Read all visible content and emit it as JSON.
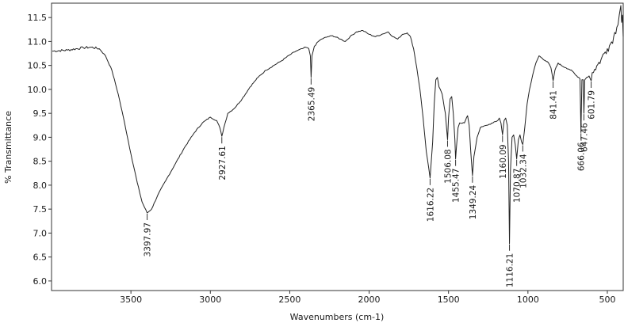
{
  "chart_data": {
    "type": "line",
    "title": "",
    "xlabel": "Wavenumbers (cm-1)",
    "ylabel": "% Transmittance",
    "x_reversed": true,
    "xlim": [
      4000,
      400
    ],
    "ylim": [
      5.8,
      11.8
    ],
    "grid": false,
    "line_color": "#222222",
    "x_ticks": [
      {
        "value": 3500,
        "label": "3500"
      },
      {
        "value": 3000,
        "label": "3000"
      },
      {
        "value": 2500,
        "label": "2500"
      },
      {
        "value": 2000,
        "label": "2000"
      },
      {
        "value": 1500,
        "label": "1500"
      },
      {
        "value": 1000,
        "label": "1000"
      },
      {
        "value": 500,
        "label": "500"
      }
    ],
    "y_ticks": [
      {
        "value": 6.0,
        "label": "6.0"
      },
      {
        "value": 6.5,
        "label": "6.5"
      },
      {
        "value": 7.0,
        "label": "7.0"
      },
      {
        "value": 7.5,
        "label": "7.5"
      },
      {
        "value": 8.0,
        "label": "8.0"
      },
      {
        "value": 8.5,
        "label": "8.5"
      },
      {
        "value": 9.0,
        "label": "9.0"
      },
      {
        "value": 9.5,
        "label": "9.5"
      },
      {
        "value": 10.0,
        "label": "10.0"
      },
      {
        "value": 10.5,
        "label": "10.5"
      },
      {
        "value": 11.0,
        "label": "11.0"
      },
      {
        "value": 11.5,
        "label": "11.5"
      }
    ],
    "series": [
      {
        "points": [
          [
            3995,
            10.8
          ],
          [
            3900,
            10.82
          ],
          [
            3800,
            10.87
          ],
          [
            3750,
            10.88
          ],
          [
            3700,
            10.85
          ],
          [
            3660,
            10.7
          ],
          [
            3620,
            10.4
          ],
          [
            3580,
            9.9
          ],
          [
            3540,
            9.3
          ],
          [
            3500,
            8.65
          ],
          [
            3460,
            8.05
          ],
          [
            3430,
            7.65
          ],
          [
            3397.97,
            7.42
          ],
          [
            3370,
            7.5
          ],
          [
            3330,
            7.8
          ],
          [
            3280,
            8.1
          ],
          [
            3220,
            8.45
          ],
          [
            3160,
            8.8
          ],
          [
            3100,
            9.1
          ],
          [
            3050,
            9.3
          ],
          [
            3000,
            9.42
          ],
          [
            2960,
            9.35
          ],
          [
            2940,
            9.2
          ],
          [
            2927.61,
            9.02
          ],
          [
            2915,
            9.2
          ],
          [
            2890,
            9.5
          ],
          [
            2850,
            9.6
          ],
          [
            2800,
            9.8
          ],
          [
            2750,
            10.05
          ],
          [
            2700,
            10.25
          ],
          [
            2650,
            10.4
          ],
          [
            2600,
            10.5
          ],
          [
            2550,
            10.6
          ],
          [
            2500,
            10.72
          ],
          [
            2460,
            10.8
          ],
          [
            2420,
            10.85
          ],
          [
            2400,
            10.88
          ],
          [
            2380,
            10.85
          ],
          [
            2370,
            10.7
          ],
          [
            2365.49,
            10.25
          ],
          [
            2360,
            10.7
          ],
          [
            2345,
            10.9
          ],
          [
            2320,
            11.0
          ],
          [
            2300,
            11.05
          ],
          [
            2260,
            11.1
          ],
          [
            2230,
            11.12
          ],
          [
            2180,
            11.05
          ],
          [
            2150,
            11.0
          ],
          [
            2120,
            11.1
          ],
          [
            2080,
            11.2
          ],
          [
            2040,
            11.23
          ],
          [
            2000,
            11.15
          ],
          [
            1960,
            11.1
          ],
          [
            1920,
            11.15
          ],
          [
            1880,
            11.2
          ],
          [
            1850,
            11.1
          ],
          [
            1820,
            11.05
          ],
          [
            1790,
            11.15
          ],
          [
            1760,
            11.18
          ],
          [
            1740,
            11.1
          ],
          [
            1720,
            10.85
          ],
          [
            1700,
            10.45
          ],
          [
            1680,
            10.0
          ],
          [
            1660,
            9.4
          ],
          [
            1640,
            8.7
          ],
          [
            1616.22,
            8.15
          ],
          [
            1600,
            8.9
          ],
          [
            1590,
            9.7
          ],
          [
            1580,
            10.2
          ],
          [
            1570,
            10.25
          ],
          [
            1560,
            10.05
          ],
          [
            1540,
            9.9
          ],
          [
            1520,
            9.5
          ],
          [
            1510,
            9.1
          ],
          [
            1506.08,
            8.95
          ],
          [
            1500,
            9.4
          ],
          [
            1490,
            9.8
          ],
          [
            1480,
            9.85
          ],
          [
            1470,
            9.5
          ],
          [
            1460,
            8.95
          ],
          [
            1455.47,
            8.55
          ],
          [
            1450,
            8.8
          ],
          [
            1440,
            9.2
          ],
          [
            1430,
            9.3
          ],
          [
            1400,
            9.3
          ],
          [
            1380,
            9.45
          ],
          [
            1370,
            9.25
          ],
          [
            1360,
            8.7
          ],
          [
            1349.24,
            8.2
          ],
          [
            1340,
            8.6
          ],
          [
            1320,
            9.0
          ],
          [
            1300,
            9.2
          ],
          [
            1260,
            9.25
          ],
          [
            1220,
            9.3
          ],
          [
            1190,
            9.35
          ],
          [
            1180,
            9.4
          ],
          [
            1170,
            9.3
          ],
          [
            1160.09,
            9.05
          ],
          [
            1150,
            9.35
          ],
          [
            1140,
            9.4
          ],
          [
            1130,
            9.25
          ],
          [
            1122,
            8.5
          ],
          [
            1116.21,
            6.78
          ],
          [
            1110,
            8.3
          ],
          [
            1100,
            9.0
          ],
          [
            1090,
            9.05
          ],
          [
            1080,
            8.85
          ],
          [
            1070.87,
            8.55
          ],
          [
            1060,
            8.95
          ],
          [
            1050,
            9.05
          ],
          [
            1040,
            8.9
          ],
          [
            1032.34,
            8.85
          ],
          [
            1020,
            9.2
          ],
          [
            1005,
            9.7
          ],
          [
            990,
            10.0
          ],
          [
            970,
            10.3
          ],
          [
            950,
            10.55
          ],
          [
            930,
            10.7
          ],
          [
            910,
            10.65
          ],
          [
            890,
            10.6
          ],
          [
            870,
            10.55
          ],
          [
            855,
            10.45
          ],
          [
            841.41,
            10.18
          ],
          [
            830,
            10.4
          ],
          [
            810,
            10.55
          ],
          [
            790,
            10.5
          ],
          [
            760,
            10.45
          ],
          [
            740,
            10.42
          ],
          [
            720,
            10.38
          ],
          [
            700,
            10.3
          ],
          [
            680,
            10.25
          ],
          [
            672,
            10.22
          ],
          [
            666.06,
            9.1
          ],
          [
            660,
            10.2
          ],
          [
            652,
            10.2
          ],
          [
            647.46,
            9.5
          ],
          [
            642,
            10.2
          ],
          [
            630,
            10.25
          ],
          [
            615,
            10.28
          ],
          [
            601.79,
            10.18
          ],
          [
            595,
            10.35
          ],
          [
            580,
            10.42
          ],
          [
            560,
            10.52
          ],
          [
            540,
            10.62
          ],
          [
            520,
            10.75
          ],
          [
            500,
            10.85
          ],
          [
            480,
            10.95
          ],
          [
            460,
            11.1
          ],
          [
            440,
            11.3
          ],
          [
            425,
            11.55
          ],
          [
            415,
            11.75
          ],
          [
            410,
            11.4
          ],
          [
            405,
            11.55
          ],
          [
            400,
            11.1
          ]
        ]
      }
    ],
    "peak_labels": [
      {
        "x": 3397.97,
        "y": 7.42,
        "label": "3397.97"
      },
      {
        "x": 2927.61,
        "y": 9.02,
        "label": "2927.61"
      },
      {
        "x": 2365.49,
        "y": 10.25,
        "label": "2365.49"
      },
      {
        "x": 1616.22,
        "y": 8.15,
        "label": "1616.22"
      },
      {
        "x": 1506.08,
        "y": 8.95,
        "label": "1506.08"
      },
      {
        "x": 1455.47,
        "y": 8.55,
        "label": "1455.47"
      },
      {
        "x": 1349.24,
        "y": 8.2,
        "label": "1349.24"
      },
      {
        "x": 1160.09,
        "y": 9.05,
        "label": "1160.09"
      },
      {
        "x": 1116.21,
        "y": 6.78,
        "label": "1116.21"
      },
      {
        "x": 1070.87,
        "y": 8.55,
        "label": "1070.87"
      },
      {
        "x": 1032.34,
        "y": 8.85,
        "label": "1032.34"
      },
      {
        "x": 841.41,
        "y": 10.18,
        "label": "841.41"
      },
      {
        "x": 666.06,
        "y": 9.1,
        "label": "666.06"
      },
      {
        "x": 647.46,
        "y": 9.5,
        "label": "647.46"
      },
      {
        "x": 601.79,
        "y": 10.18,
        "label": "601.79"
      }
    ]
  }
}
